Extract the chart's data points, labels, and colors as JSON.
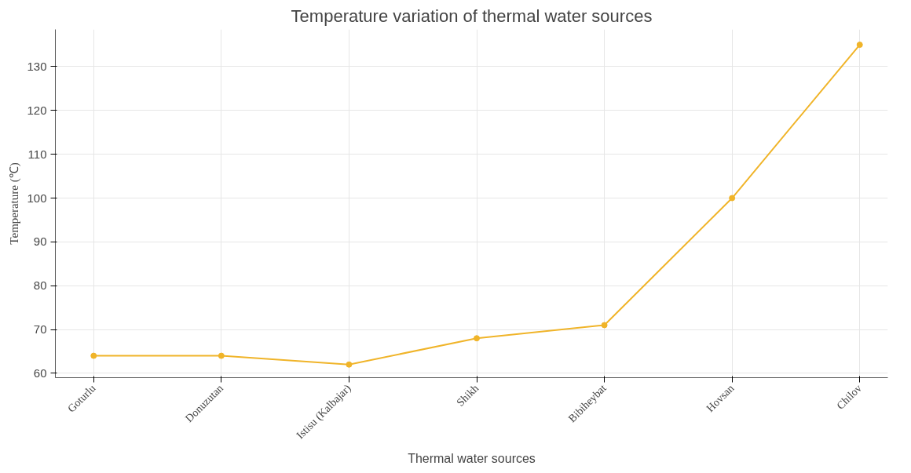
{
  "chart_data": {
    "type": "line",
    "title": "Temperature variation of thermal water sources",
    "xlabel": "Thermal water sources",
    "ylabel": "Temperature (℃)",
    "categories": [
      "Goturlu",
      "Donuzutan",
      "Istisu (Kalbajar)",
      "Shikh",
      "Bibiheybat",
      "Hovsan",
      "Chilov"
    ],
    "series": [
      {
        "color": "#f0b429",
        "values": [
          64,
          64,
          62,
          68,
          71,
          100,
          135
        ]
      }
    ],
    "ylim": [
      59,
      138.5
    ],
    "yticks": [
      60,
      70,
      80,
      90,
      100,
      110,
      120,
      130
    ],
    "grid": true,
    "marker": "circle",
    "line_style": "solid"
  }
}
